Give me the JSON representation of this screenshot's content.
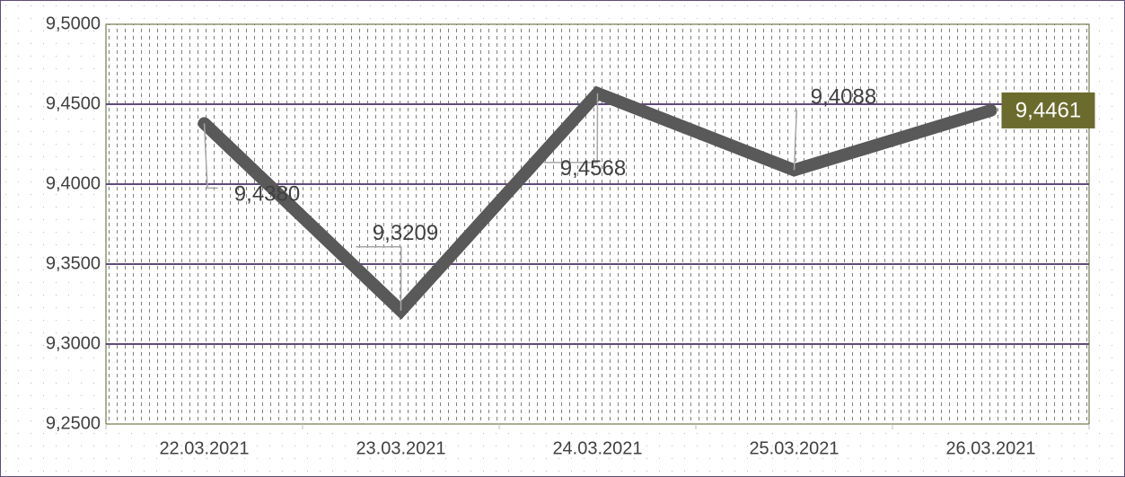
{
  "chart_data": {
    "type": "line",
    "categories": [
      "22.03.2021",
      "23.03.2021",
      "24.03.2021",
      "25.03.2021",
      "26.03.2021"
    ],
    "series": [
      {
        "name": null,
        "color": "#595959",
        "values": [
          9.438,
          9.3209,
          9.4568,
          9.4088,
          9.4461
        ],
        "value_labels": [
          "9,4380",
          "9,3209",
          "9,4568",
          "9,4088",
          "9,4461"
        ]
      }
    ],
    "ylim": [
      9.25,
      9.5
    ],
    "yticks": [
      {
        "value": 9.25,
        "label": "9,2500"
      },
      {
        "value": 9.3,
        "label": "9,3000"
      },
      {
        "value": 9.35,
        "label": "9,3500"
      },
      {
        "value": 9.4,
        "label": "9,4000"
      },
      {
        "value": 9.45,
        "label": "9,4500"
      },
      {
        "value": 9.5,
        "label": "9,5000"
      }
    ],
    "grid": true
  }
}
